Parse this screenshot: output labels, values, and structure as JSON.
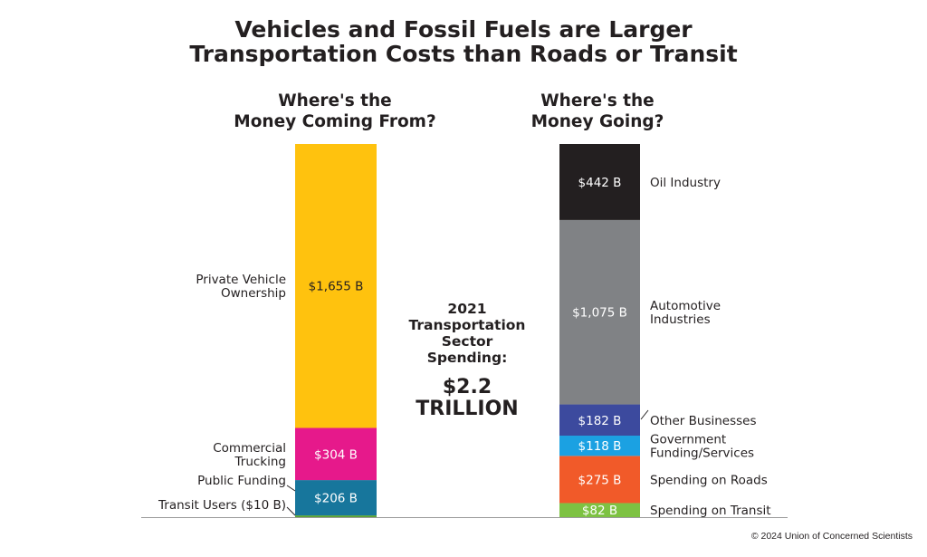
{
  "title_line1": "Vehicles and Fossil Fuels are Larger",
  "title_line2": "Transportation Costs than Roads or Transit",
  "left_heading_line1": "Where's the",
  "left_heading_line2": "Money Coming From?",
  "right_heading_line1": "Where's the",
  "right_heading_line2": "Money Going?",
  "center": {
    "line1": "2021",
    "line2": "Transportation",
    "line3": "Sector",
    "line4": "Spending:",
    "big1": "$2.2",
    "big2": "TRILLION"
  },
  "credit": "© 2024 Union of Concerned Scientists",
  "chart_data": {
    "type": "bar",
    "stacked": true,
    "units": "billions of dollars",
    "columns": [
      {
        "heading": "Where's the Money Coming From?",
        "segments": [
          {
            "label": [
              "Transit Users ($10 B)"
            ],
            "value": 10,
            "value_label": "",
            "color": "#5aa531"
          },
          {
            "label": [
              "Public Funding"
            ],
            "value": 206,
            "value_label": "$206 B",
            "color": "#17769c"
          },
          {
            "label": [
              "Commercial",
              "Trucking"
            ],
            "value": 304,
            "value_label": "$304 B",
            "color": "#e6198b"
          },
          {
            "label": [
              "Private Vehicle",
              "Ownership"
            ],
            "value": 1655,
            "value_label": "$1,655 B",
            "color": "#ffc20e"
          }
        ]
      },
      {
        "heading": "Where's the Money Going?",
        "segments": [
          {
            "label": [
              "Spending on Transit"
            ],
            "value": 82,
            "value_label": "$82 B",
            "color": "#7dc242"
          },
          {
            "label": [
              "Spending on Roads"
            ],
            "value": 275,
            "value_label": "$275 B",
            "color": "#f15a29"
          },
          {
            "label": [
              "Government",
              "Funding/Services"
            ],
            "value": 118,
            "value_label": "$118 B",
            "color": "#1ba1e2"
          },
          {
            "label": [
              "Other Businesses"
            ],
            "value": 182,
            "value_label": "$182 B",
            "color": "#3c4a9e"
          },
          {
            "label": [
              "Automotive",
              "Industries"
            ],
            "value": 1075,
            "value_label": "$1,075 B",
            "color": "#808285"
          },
          {
            "label": [
              "Oil Industry"
            ],
            "value": 442,
            "value_label": "$442 B",
            "color": "#231f20"
          }
        ]
      }
    ]
  }
}
